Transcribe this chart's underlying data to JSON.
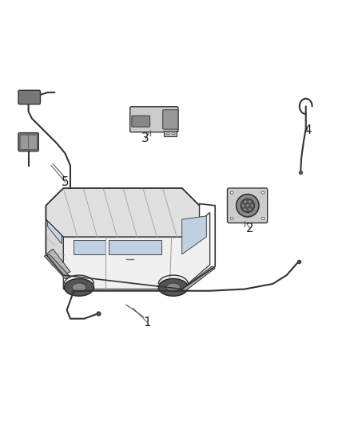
{
  "background_color": "#ffffff",
  "figure_width": 4.38,
  "figure_height": 5.33,
  "dpi": 100,
  "label_fontsize": 11,
  "label_color": "#222222",
  "line_color": "#333333",
  "line_width": 1.0
}
